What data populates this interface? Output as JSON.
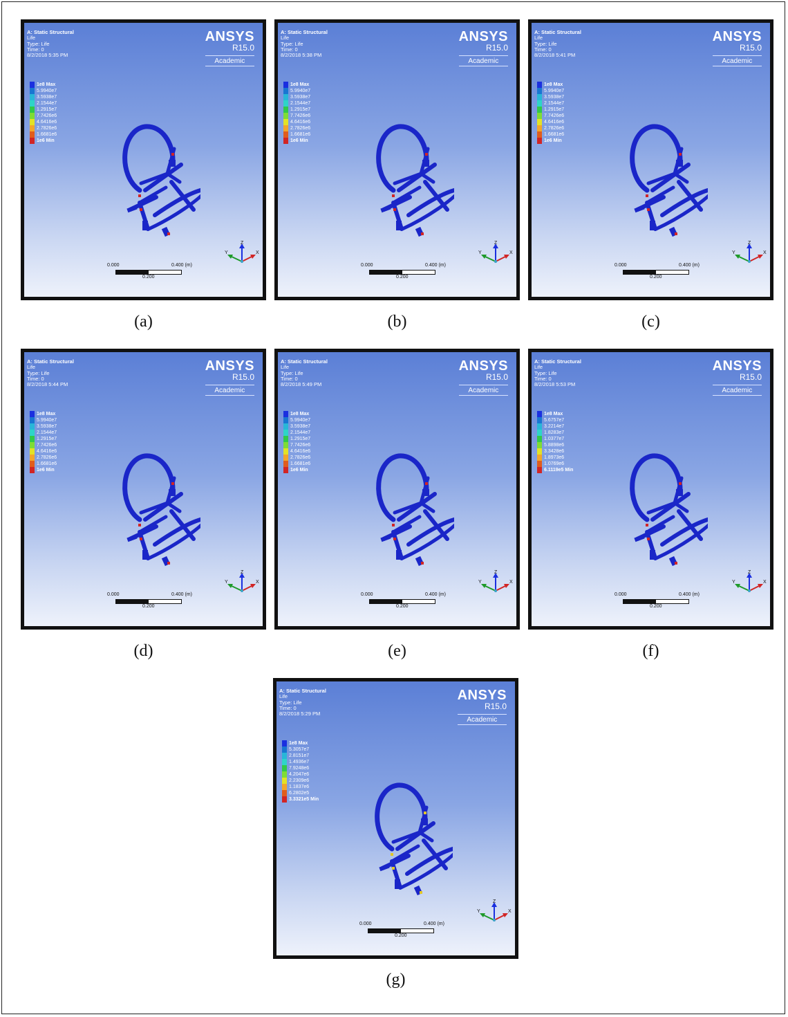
{
  "colors": {
    "legend": [
      "#1a2fe0",
      "#1976d2",
      "#29b6d8",
      "#2ed4c8",
      "#31c94a",
      "#7fdc35",
      "#e2e226",
      "#f2a62b",
      "#e05d1d",
      "#d12525"
    ],
    "model": "#1a26c8",
    "hotspot": "#d12525"
  },
  "panels": [
    {
      "caption": "(a)",
      "header": [
        "A: Static Structural",
        "Life",
        "Type: Life",
        "Time: 0",
        "8/2/2018 5:35 PM"
      ],
      "brand": [
        "ANSYS",
        "R15.0",
        "Academic"
      ],
      "legend": [
        "1e8 Max",
        "5.9940e7",
        "3.5938e7",
        "2.1544e7",
        "1.2915e7",
        "7.7426e6",
        "4.6416e6",
        "2.7826e6",
        "1.6681e6",
        "1e6 Min"
      ],
      "scale": [
        "0.000",
        "0.400 (m)",
        "0.200"
      ],
      "axis": [
        "Z",
        "Y",
        "X"
      ]
    },
    {
      "caption": "(b)",
      "header": [
        "A: Static Structural",
        "Life",
        "Type: Life",
        "Time: 0",
        "8/2/2018 5:38 PM"
      ],
      "brand": [
        "ANSYS",
        "R15.0",
        "Academic"
      ],
      "legend": [
        "1e8 Max",
        "5.9940e7",
        "3.5938e7",
        "2.1544e7",
        "1.2915e7",
        "7.7426e6",
        "4.6416e6",
        "2.7826e6",
        "1.6681e6",
        "1e6 Min"
      ],
      "scale": [
        "0.000",
        "0.400 (m)",
        "0.200"
      ],
      "axis": [
        "Z",
        "Y",
        "X"
      ]
    },
    {
      "caption": "(c)",
      "header": [
        "A: Static Structural",
        "Life",
        "Type: Life",
        "Time: 0",
        "8/2/2018 5:41 PM"
      ],
      "brand": [
        "ANSYS",
        "R15.0",
        "Academic"
      ],
      "legend": [
        "1e8 Max",
        "5.9940e7",
        "3.5938e7",
        "2.1544e7",
        "1.2915e7",
        "7.7426e6",
        "4.6416e6",
        "2.7826e6",
        "1.6681e6",
        "1e6 Min"
      ],
      "scale": [
        "0.000",
        "0.400 (m)",
        "0.200"
      ],
      "axis": [
        "Z",
        "Y",
        "X"
      ]
    },
    {
      "caption": "(d)",
      "header": [
        "A: Static Structural",
        "Life",
        "Type: Life",
        "Time: 0",
        "8/2/2018 5:44 PM"
      ],
      "brand": [
        "ANSYS",
        "R15.0",
        "Academic"
      ],
      "legend": [
        "1e8 Max",
        "5.9940e7",
        "3.5938e7",
        "2.1544e7",
        "1.2915e7",
        "7.7426e6",
        "4.6416e6",
        "2.7826e6",
        "1.6681e6",
        "1e6 Min"
      ],
      "scale": [
        "0.000",
        "0.400 (m)",
        "0.200"
      ],
      "axis": [
        "Z",
        "Y",
        "X"
      ]
    },
    {
      "caption": "(e)",
      "header": [
        "A: Static Structural",
        "Life",
        "Type: Life",
        "Time: 0",
        "8/2/2018 5:49 PM"
      ],
      "brand": [
        "ANSYS",
        "R15.0",
        "Academic"
      ],
      "legend": [
        "1e8 Max",
        "5.9940e7",
        "3.5938e7",
        "2.1544e7",
        "1.2915e7",
        "7.7426e6",
        "4.6416e6",
        "2.7826e6",
        "1.6681e6",
        "1e6 Min"
      ],
      "scale": [
        "0.000",
        "0.400 (m)",
        "0.200"
      ],
      "axis": [
        "Z",
        "Y",
        "X"
      ]
    },
    {
      "caption": "(f)",
      "header": [
        "A: Static Structural",
        "Life",
        "Type: Life",
        "Time: 0",
        "8/2/2018 5:53 PM"
      ],
      "brand": [
        "ANSYS",
        "R15.0",
        "Academic"
      ],
      "legend": [
        "1e8 Max",
        "5.6757e7",
        "3.2214e7",
        "1.8283e7",
        "1.0377e7",
        "5.8898e6",
        "3.3428e6",
        "1.8973e6",
        "1.0769e6",
        "6.1119e5 Min"
      ],
      "scale": [
        "0.000",
        "0.400 (m)",
        "0.200"
      ],
      "axis": [
        "Z",
        "Y",
        "X"
      ]
    },
    {
      "caption": "(g)",
      "header": [
        "A: Static Structural",
        "Life",
        "Type: Life",
        "Time: 0",
        "8/2/2018 5:29 PM"
      ],
      "brand": [
        "ANSYS",
        "R15.0",
        "Academic"
      ],
      "legend": [
        "1e8 Max",
        "5.3057e7",
        "2.8151e7",
        "1.4936e7",
        "7.9248e6",
        "4.2047e6",
        "2.2309e6",
        "1.1837e6",
        "6.2802e5",
        "3.3321e5 Min"
      ],
      "scale": [
        "0.000",
        "0.400 (m)",
        "0.200"
      ],
      "axis": [
        "Z",
        "Y",
        "X"
      ]
    }
  ]
}
